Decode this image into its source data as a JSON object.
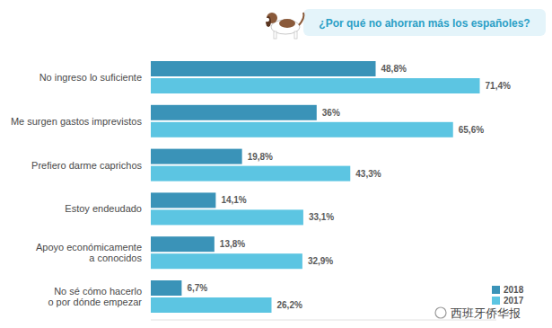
{
  "chart_data": {
    "type": "bar",
    "orientation": "horizontal",
    "title": "¿Por qué no ahorran más los españoles?",
    "annotations": [
      "西班牙侨华报"
    ],
    "categories": [
      "No ingreso lo suficiente",
      "Me surgen gastos imprevistos",
      "Prefiero darme caprichos",
      "Estoy endeudado",
      "Apoyo económicamente a conocidos",
      "No sé cómo hacerlo o por dónde empezar"
    ],
    "series": [
      {
        "name": "2018",
        "color": "#3a93b8",
        "values": [
          48.8,
          36,
          19.8,
          14.1,
          13.8,
          6.7
        ],
        "value_labels": [
          "48,8%",
          "36%",
          "19,8%",
          "14,1%",
          "13,8%",
          "6,7%"
        ]
      },
      {
        "name": "2017",
        "color": "#5cc5e2",
        "values": [
          71.4,
          65.6,
          43.3,
          33.1,
          32.9,
          26.2
        ],
        "value_labels": [
          "71,4%",
          "65,6%",
          "43,3%",
          "33,1%",
          "32,9%",
          "26,2%"
        ]
      }
    ],
    "xlim": [
      0,
      75
    ],
    "data_labels": true,
    "tick_labels": false,
    "grid": false,
    "legend": "bottom-right"
  }
}
